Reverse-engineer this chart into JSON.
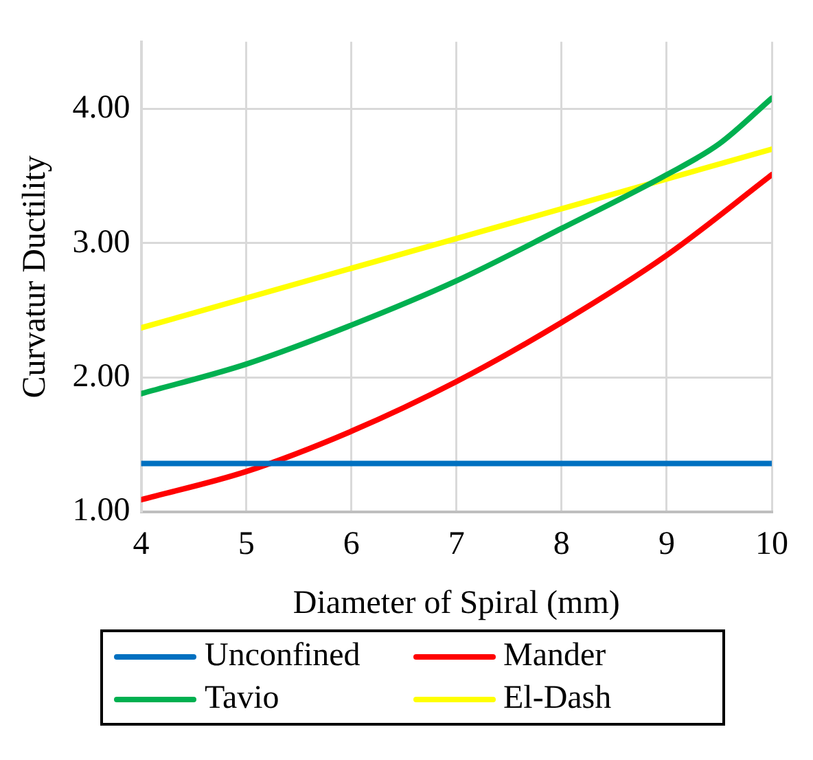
{
  "chart_data": {
    "type": "line",
    "xlabel": "Diameter of Spiral (mm)",
    "ylabel": "Curvatur Ductility",
    "xlim": [
      4,
      10
    ],
    "xticks": [
      4,
      5,
      6,
      7,
      8,
      9,
      10
    ],
    "ylim": [
      1,
      4.5
    ],
    "yticks": [
      {
        "value": 1,
        "label": "1.00"
      },
      {
        "value": 2,
        "label": "2.00"
      },
      {
        "value": 3,
        "label": "3.00"
      },
      {
        "value": 4,
        "label": "4.00"
      }
    ],
    "grid": true,
    "legend": "bottom",
    "marker": "none",
    "line_style": "solid",
    "series": [
      {
        "name": "Unconfined",
        "color": "#0070c0",
        "x": [
          4,
          10
        ],
        "values": [
          1.36,
          1.36
        ]
      },
      {
        "name": "Mander",
        "color": "#ff0000",
        "x": [
          4,
          5,
          6,
          7,
          8,
          9,
          10
        ],
        "values": [
          1.09,
          1.3,
          1.6,
          1.97,
          2.41,
          2.91,
          3.51
        ]
      },
      {
        "name": "Tavio",
        "color": "#00b050",
        "x": [
          4,
          5,
          6,
          7,
          8,
          9,
          9.5,
          10
        ],
        "values": [
          1.88,
          2.1,
          2.39,
          2.72,
          3.11,
          3.51,
          3.74,
          4.08
        ]
      },
      {
        "name": "El-Dash",
        "color": "#ffff00",
        "x": [
          4,
          10
        ],
        "values": [
          2.37,
          3.7
        ]
      }
    ]
  }
}
